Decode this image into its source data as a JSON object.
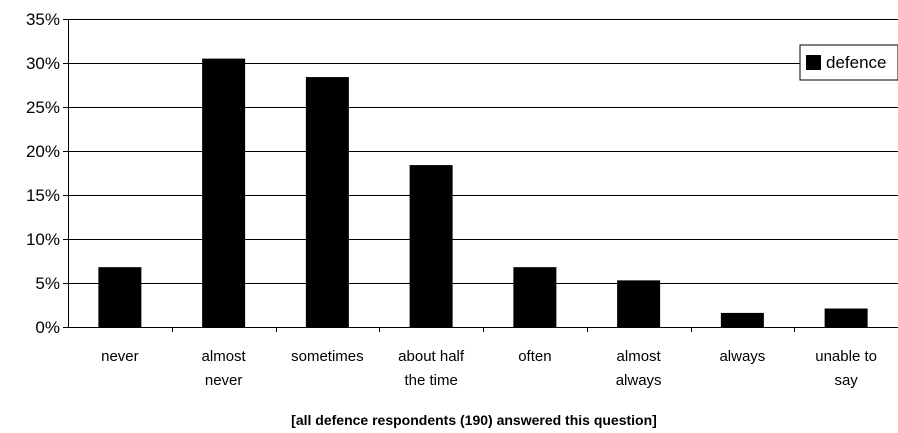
{
  "chart_data": {
    "type": "bar",
    "categories": [
      [
        "never"
      ],
      [
        "almost",
        "never"
      ],
      [
        "sometimes"
      ],
      [
        "about half",
        "the time"
      ],
      [
        "often"
      ],
      [
        "almost",
        "always"
      ],
      [
        "always"
      ],
      [
        "unable to",
        "say"
      ]
    ],
    "series": [
      {
        "name": "defence",
        "values": [
          6.8,
          30.5,
          28.4,
          18.4,
          6.8,
          5.3,
          1.6,
          2.1
        ],
        "color": "#000000"
      }
    ],
    "ylim": [
      0,
      35
    ],
    "yticks": [
      0,
      5,
      10,
      15,
      20,
      25,
      30,
      35
    ],
    "ytick_suffix": "%",
    "grid": true,
    "legend_position": "top-right",
    "caption": "[all defence respondents (190) answered this question]"
  }
}
